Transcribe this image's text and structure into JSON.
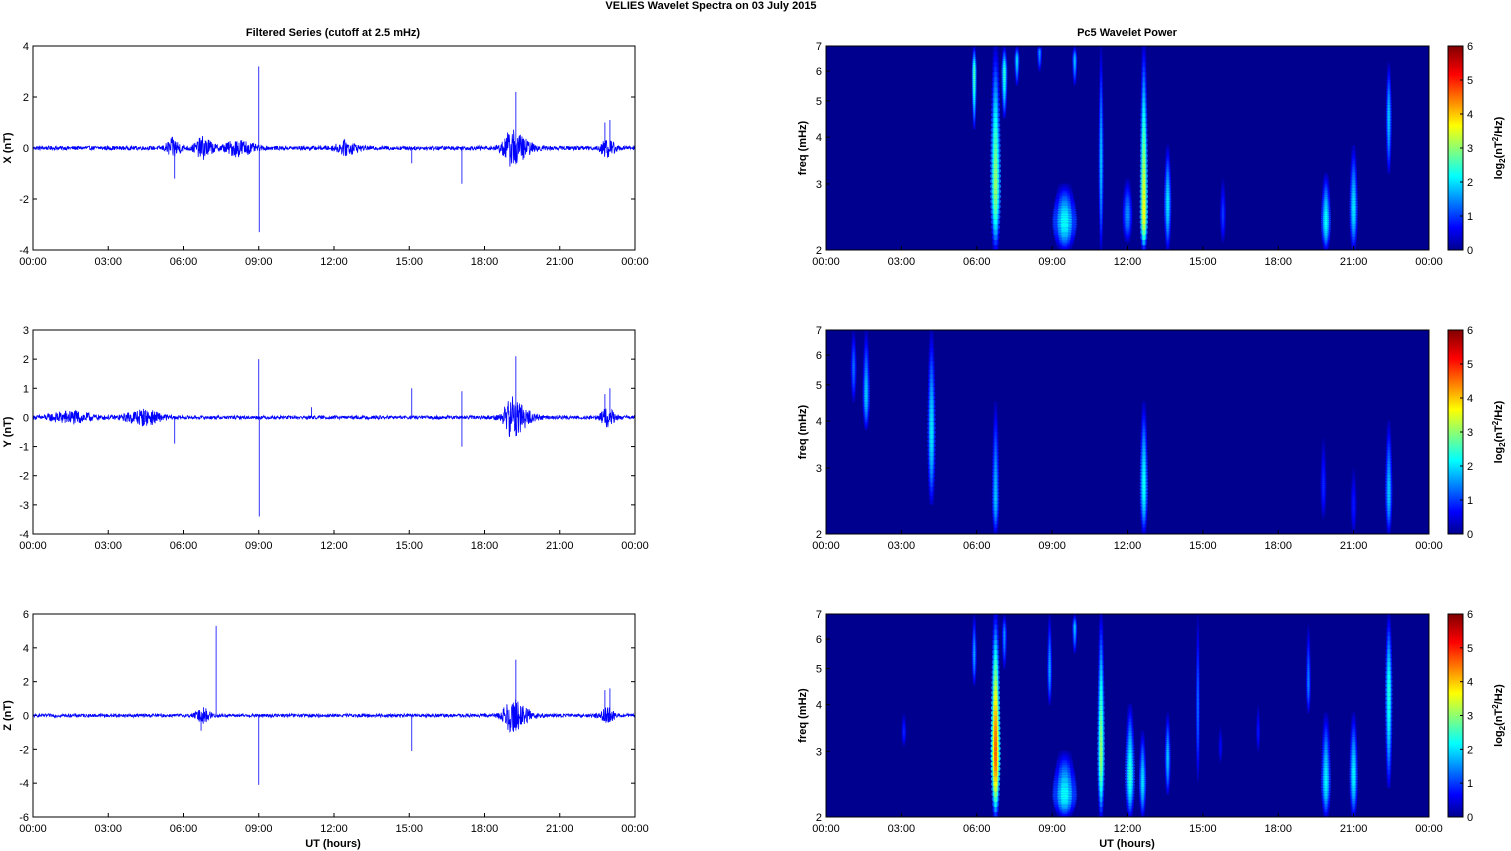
{
  "figure": {
    "title": "VELIES Wavelet Spectra on 03 July      2015",
    "left_title": "Filtered Series (cutoff at 2.5 mHz)",
    "right_title": "Pc5 Wavelet Power",
    "xlabel": "UT (hours)"
  },
  "colors": {
    "line": "#0000ff",
    "spectrogram_background": "#00008f",
    "colormap": [
      "#00008f",
      "#0000ff",
      "#00ffff",
      "#ffff00",
      "#ff0000",
      "#800000"
    ]
  },
  "chart_data": [
    {
      "type": "line",
      "panel": "X",
      "title": "Filtered Series (cutoff at 2.5 mHz)",
      "ylabel": "X (nT)",
      "xlim": [
        0,
        24
      ],
      "ylim": [
        -4,
        4
      ],
      "x_ticks": [
        "00:00",
        "03:00",
        "06:00",
        "09:00",
        "12:00",
        "15:00",
        "18:00",
        "21:00",
        "00:00"
      ],
      "y_ticks": [
        "4",
        "2",
        "0",
        "-2",
        "-4"
      ],
      "noise_amplitude": 0.08,
      "bursts": [
        {
          "t": 5.6,
          "width": 0.4,
          "amp": 0.35
        },
        {
          "t": 6.8,
          "width": 0.5,
          "amp": 0.4
        },
        {
          "t": 8.2,
          "width": 0.8,
          "amp": 0.3
        },
        {
          "t": 12.5,
          "width": 0.6,
          "amp": 0.25
        },
        {
          "t": 19.1,
          "width": 0.5,
          "amp": 0.5
        },
        {
          "t": 19.4,
          "width": 0.8,
          "amp": 0.3
        },
        {
          "t": 22.9,
          "width": 0.4,
          "amp": 0.35
        }
      ],
      "spikes": [
        {
          "t": 5.65,
          "v": -1.2
        },
        {
          "t": 9.0,
          "v": 3.2
        },
        {
          "t": 9.02,
          "v": -3.3
        },
        {
          "t": 15.1,
          "v": -0.6
        },
        {
          "t": 17.1,
          "v": -1.4
        },
        {
          "t": 19.25,
          "v": 2.2
        },
        {
          "t": 22.8,
          "v": 1.0
        },
        {
          "t": 23.0,
          "v": 1.1
        }
      ]
    },
    {
      "type": "line",
      "panel": "Y",
      "ylabel": "Y (nT)",
      "xlim": [
        0,
        24
      ],
      "ylim": [
        -4,
        3
      ],
      "x_ticks": [
        "00:00",
        "03:00",
        "06:00",
        "09:00",
        "12:00",
        "15:00",
        "18:00",
        "21:00",
        "00:00"
      ],
      "y_ticks": [
        "3",
        "2",
        "1",
        "0",
        "-1",
        "-2",
        "-3",
        "-4"
      ],
      "noise_amplitude": 0.06,
      "bursts": [
        {
          "t": 1.5,
          "width": 1.2,
          "amp": 0.2
        },
        {
          "t": 4.4,
          "width": 1.0,
          "amp": 0.25
        },
        {
          "t": 19.1,
          "width": 0.5,
          "amp": 0.5
        },
        {
          "t": 19.4,
          "width": 0.8,
          "amp": 0.3
        },
        {
          "t": 22.9,
          "width": 0.4,
          "amp": 0.3
        }
      ],
      "spikes": [
        {
          "t": 5.65,
          "v": -0.9
        },
        {
          "t": 9.0,
          "v": 2.0
        },
        {
          "t": 9.02,
          "v": -3.4
        },
        {
          "t": 11.1,
          "v": 0.35
        },
        {
          "t": 15.1,
          "v": 1.0
        },
        {
          "t": 17.1,
          "v": -1.0
        },
        {
          "t": 17.1,
          "v": 0.9
        },
        {
          "t": 19.25,
          "v": 2.1
        },
        {
          "t": 22.8,
          "v": 0.8
        },
        {
          "t": 23.0,
          "v": 1.0
        }
      ]
    },
    {
      "type": "line",
      "panel": "Z",
      "ylabel": "Z (nT)",
      "xlim": [
        0,
        24
      ],
      "ylim": [
        -6,
        6
      ],
      "x_ticks": [
        "00:00",
        "03:00",
        "06:00",
        "09:00",
        "12:00",
        "15:00",
        "18:00",
        "21:00",
        "00:00"
      ],
      "y_ticks": [
        "6",
        "4",
        "2",
        "0",
        "-2",
        "-4",
        "-6"
      ],
      "noise_amplitude": 0.1,
      "bursts": [
        {
          "t": 6.8,
          "width": 0.4,
          "amp": 0.4
        },
        {
          "t": 19.1,
          "width": 0.5,
          "amp": 0.7
        },
        {
          "t": 19.4,
          "width": 0.8,
          "amp": 0.4
        },
        {
          "t": 22.9,
          "width": 0.4,
          "amp": 0.4
        }
      ],
      "spikes": [
        {
          "t": 7.3,
          "v": 5.3
        },
        {
          "t": 6.7,
          "v": -0.9
        },
        {
          "t": 9.0,
          "v": -4.1
        },
        {
          "t": 15.1,
          "v": -2.1
        },
        {
          "t": 19.25,
          "v": 3.3
        },
        {
          "t": 22.8,
          "v": 1.5
        },
        {
          "t": 23.0,
          "v": 1.6
        }
      ]
    },
    {
      "type": "heatmap",
      "panel": "X-wavelet",
      "title": "Pc5 Wavelet Power",
      "ylabel": "freq (mHz)",
      "yscale": "log",
      "xlim": [
        0,
        24
      ],
      "ylim": [
        2,
        7
      ],
      "x_ticks": [
        "00:00",
        "03:00",
        "06:00",
        "09:00",
        "12:00",
        "15:00",
        "18:00",
        "21:00",
        "00:00"
      ],
      "y_ticks": [
        "7",
        "6",
        "5",
        "4",
        "3",
        "2"
      ],
      "colorbar_label": "log2(nT^2/Hz)",
      "colorbar_ticks": [
        "6",
        "5",
        "4",
        "3",
        "2",
        "1",
        "0"
      ],
      "clim": [
        0,
        6
      ],
      "features": [
        {
          "t": 6.75,
          "f_low": 2.0,
          "f_high": 7.0,
          "peak_f": 3.0,
          "value": 3.0,
          "width_h": 0.22
        },
        {
          "t": 5.9,
          "f_low": 4.2,
          "f_high": 7.0,
          "peak_f": 6.0,
          "value": 2.6,
          "width_h": 0.1
        },
        {
          "t": 7.1,
          "f_low": 4.5,
          "f_high": 7.0,
          "peak_f": 6.0,
          "value": 2.4,
          "width_h": 0.12
        },
        {
          "t": 7.6,
          "f_low": 5.5,
          "f_high": 7.0,
          "peak_f": 6.5,
          "value": 2.0,
          "width_h": 0.1
        },
        {
          "t": 8.5,
          "f_low": 6.0,
          "f_high": 7.0,
          "peak_f": 6.8,
          "value": 1.6,
          "width_h": 0.1
        },
        {
          "t": 9.5,
          "f_low": 2.0,
          "f_high": 3.0,
          "peak_f": 2.4,
          "value": 2.2,
          "width_h": 0.5
        },
        {
          "t": 9.9,
          "f_low": 5.5,
          "f_high": 7.0,
          "peak_f": 6.5,
          "value": 1.8,
          "width_h": 0.1
        },
        {
          "t": 10.95,
          "f_low": 2.0,
          "f_high": 7.0,
          "peak_f": 3.5,
          "value": 1.8,
          "width_h": 0.1
        },
        {
          "t": 12.0,
          "f_low": 2.1,
          "f_high": 3.1,
          "peak_f": 2.5,
          "value": 1.5,
          "width_h": 0.2
        },
        {
          "t": 12.65,
          "f_low": 2.0,
          "f_high": 7.0,
          "peak_f": 2.5,
          "value": 3.6,
          "width_h": 0.17
        },
        {
          "t": 13.6,
          "f_low": 2.0,
          "f_high": 3.8,
          "peak_f": 2.7,
          "value": 2.0,
          "width_h": 0.15
        },
        {
          "t": 15.8,
          "f_low": 2.1,
          "f_high": 3.1,
          "peak_f": 2.5,
          "value": 1.0,
          "width_h": 0.12
        },
        {
          "t": 19.9,
          "f_low": 2.0,
          "f_high": 3.2,
          "peak_f": 2.4,
          "value": 2.2,
          "width_h": 0.2
        },
        {
          "t": 21.0,
          "f_low": 2.0,
          "f_high": 3.8,
          "peak_f": 2.6,
          "value": 2.0,
          "width_h": 0.17
        },
        {
          "t": 22.4,
          "f_low": 3.2,
          "f_high": 6.3,
          "peak_f": 4.6,
          "value": 1.8,
          "width_h": 0.12
        }
      ]
    },
    {
      "type": "heatmap",
      "panel": "Y-wavelet",
      "ylabel": "freq (mHz)",
      "yscale": "log",
      "xlim": [
        0,
        24
      ],
      "ylim": [
        2,
        7
      ],
      "x_ticks": [
        "00:00",
        "03:00",
        "06:00",
        "09:00",
        "12:00",
        "15:00",
        "18:00",
        "21:00",
        "00:00"
      ],
      "y_ticks": [
        "7",
        "6",
        "5",
        "4",
        "3",
        "2"
      ],
      "colorbar_label": "log2(nT^2/Hz)",
      "colorbar_ticks": [
        "6",
        "5",
        "4",
        "3",
        "2",
        "1",
        "0"
      ],
      "clim": [
        0,
        6
      ],
      "features": [
        {
          "t": 1.1,
          "f_low": 4.5,
          "f_high": 7.0,
          "peak_f": 5.6,
          "value": 1.3,
          "width_h": 0.12
        },
        {
          "t": 1.6,
          "f_low": 3.8,
          "f_high": 7.0,
          "peak_f": 4.7,
          "value": 1.8,
          "width_h": 0.15
        },
        {
          "t": 4.2,
          "f_low": 2.4,
          "f_high": 7.0,
          "peak_f": 3.8,
          "value": 2.0,
          "width_h": 0.17
        },
        {
          "t": 6.75,
          "f_low": 2.0,
          "f_high": 4.5,
          "peak_f": 2.5,
          "value": 1.8,
          "width_h": 0.15
        },
        {
          "t": 12.65,
          "f_low": 2.0,
          "f_high": 4.5,
          "peak_f": 2.7,
          "value": 2.2,
          "width_h": 0.17
        },
        {
          "t": 19.8,
          "f_low": 2.2,
          "f_high": 3.6,
          "peak_f": 2.7,
          "value": 0.9,
          "width_h": 0.12
        },
        {
          "t": 21.0,
          "f_low": 2.0,
          "f_high": 3.0,
          "peak_f": 2.4,
          "value": 0.8,
          "width_h": 0.12
        },
        {
          "t": 22.4,
          "f_low": 2.0,
          "f_high": 4.0,
          "peak_f": 2.6,
          "value": 1.8,
          "width_h": 0.15
        }
      ]
    },
    {
      "type": "heatmap",
      "panel": "Z-wavelet",
      "ylabel": "freq (mHz)",
      "yscale": "log",
      "xlim": [
        0,
        24
      ],
      "ylim": [
        2,
        7
      ],
      "x_ticks": [
        "00:00",
        "03:00",
        "06:00",
        "09:00",
        "12:00",
        "15:00",
        "18:00",
        "21:00",
        "00:00"
      ],
      "y_ticks": [
        "7",
        "6",
        "5",
        "4",
        "3",
        "2"
      ],
      "colorbar_label": "log2(nT^2/Hz)",
      "colorbar_ticks": [
        "6",
        "5",
        "4",
        "3",
        "2",
        "1",
        "0"
      ],
      "clim": [
        0,
        6
      ],
      "features": [
        {
          "t": 3.1,
          "f_low": 3.1,
          "f_high": 3.8,
          "peak_f": 3.4,
          "value": 0.9,
          "width_h": 0.1
        },
        {
          "t": 5.9,
          "f_low": 4.5,
          "f_high": 7.0,
          "peak_f": 5.5,
          "value": 1.6,
          "width_h": 0.1
        },
        {
          "t": 6.75,
          "f_low": 2.0,
          "f_high": 7.0,
          "peak_f": 3.0,
          "value": 4.6,
          "width_h": 0.2
        },
        {
          "t": 7.1,
          "f_low": 5.0,
          "f_high": 7.0,
          "peak_f": 6.2,
          "value": 1.5,
          "width_h": 0.1
        },
        {
          "t": 8.9,
          "f_low": 4.0,
          "f_high": 7.0,
          "peak_f": 5.0,
          "value": 1.6,
          "width_h": 0.1
        },
        {
          "t": 9.5,
          "f_low": 2.0,
          "f_high": 3.0,
          "peak_f": 2.3,
          "value": 2.2,
          "width_h": 0.5
        },
        {
          "t": 9.9,
          "f_low": 5.5,
          "f_high": 7.0,
          "peak_f": 6.5,
          "value": 1.8,
          "width_h": 0.1
        },
        {
          "t": 10.95,
          "f_low": 2.0,
          "f_high": 7.0,
          "peak_f": 3.0,
          "value": 3.0,
          "width_h": 0.15
        },
        {
          "t": 12.1,
          "f_low": 2.0,
          "f_high": 4.0,
          "peak_f": 2.6,
          "value": 2.4,
          "width_h": 0.2
        },
        {
          "t": 12.6,
          "f_low": 2.0,
          "f_high": 3.4,
          "peak_f": 2.5,
          "value": 2.0,
          "width_h": 0.15
        },
        {
          "t": 13.6,
          "f_low": 2.3,
          "f_high": 3.8,
          "peak_f": 2.9,
          "value": 1.8,
          "width_h": 0.12
        },
        {
          "t": 14.8,
          "f_low": 2.5,
          "f_high": 7.0,
          "peak_f": 4.0,
          "value": 1.3,
          "width_h": 0.08
        },
        {
          "t": 15.7,
          "f_low": 2.8,
          "f_high": 3.5,
          "peak_f": 3.1,
          "value": 0.7,
          "width_h": 0.08
        },
        {
          "t": 17.2,
          "f_low": 3.0,
          "f_high": 4.0,
          "peak_f": 3.4,
          "value": 0.8,
          "width_h": 0.08
        },
        {
          "t": 19.2,
          "f_low": 3.8,
          "f_high": 6.5,
          "peak_f": 4.6,
          "value": 1.4,
          "width_h": 0.1
        },
        {
          "t": 19.9,
          "f_low": 2.0,
          "f_high": 3.8,
          "peak_f": 2.5,
          "value": 2.1,
          "width_h": 0.2
        },
        {
          "t": 21.0,
          "f_low": 2.0,
          "f_high": 3.8,
          "peak_f": 2.6,
          "value": 2.1,
          "width_h": 0.17
        },
        {
          "t": 22.4,
          "f_low": 2.4,
          "f_high": 7.0,
          "peak_f": 4.4,
          "value": 2.3,
          "width_h": 0.15
        }
      ]
    }
  ]
}
